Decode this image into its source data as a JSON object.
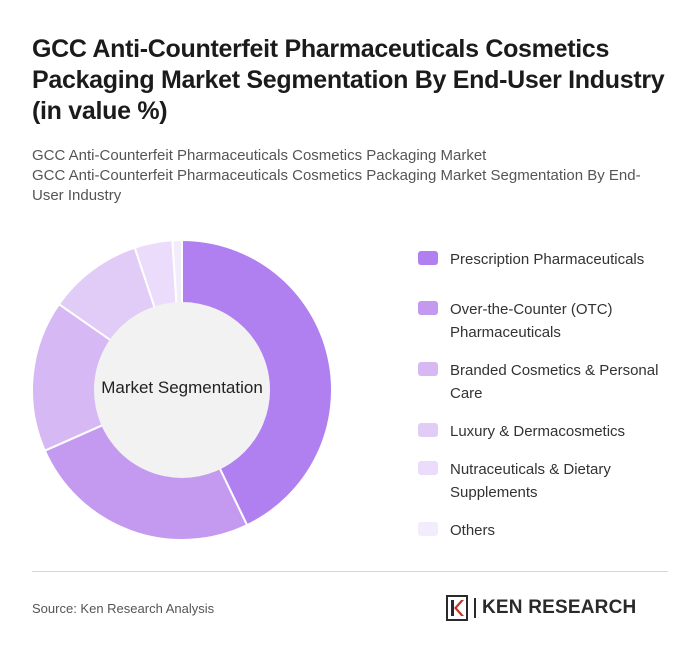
{
  "header": {
    "title": "GCC Anti-Counterfeit Pharmaceuticals Cosmetics Packaging Market Segmentation By End-User Industry (in value %)",
    "subtitle_line1": "GCC Anti-Counterfeit Pharmaceuticals Cosmetics Packaging Market",
    "subtitle_line2": "GCC Anti-Counterfeit Pharmaceuticals Cosmetics Packaging Market Segmentation By End-User Industry"
  },
  "chart_data": {
    "type": "pie",
    "donut": true,
    "center_label": "Market Segmentation",
    "legend_position": "right",
    "categories": [
      "Prescription Pharmaceuticals",
      "Over-the-Counter (OTC) Pharmaceuticals",
      "Branded Cosmetics & Personal Care",
      "Luxury & Dermacosmetics",
      "Nutraceuticals & Dietary Supplements",
      "Others"
    ],
    "values": [
      42,
      25,
      16,
      10,
      4,
      1
    ],
    "colors": [
      "#b07ff0",
      "#c49af1",
      "#d6b9f4",
      "#e1cbf7",
      "#eadcfa",
      "#f3ecfc"
    ]
  },
  "footer": {
    "source": "Source: Ken Research Analysis",
    "brand": "KEN RESEARCH"
  },
  "icons": {
    "brand_logo": "ken-research-logo-icon"
  }
}
